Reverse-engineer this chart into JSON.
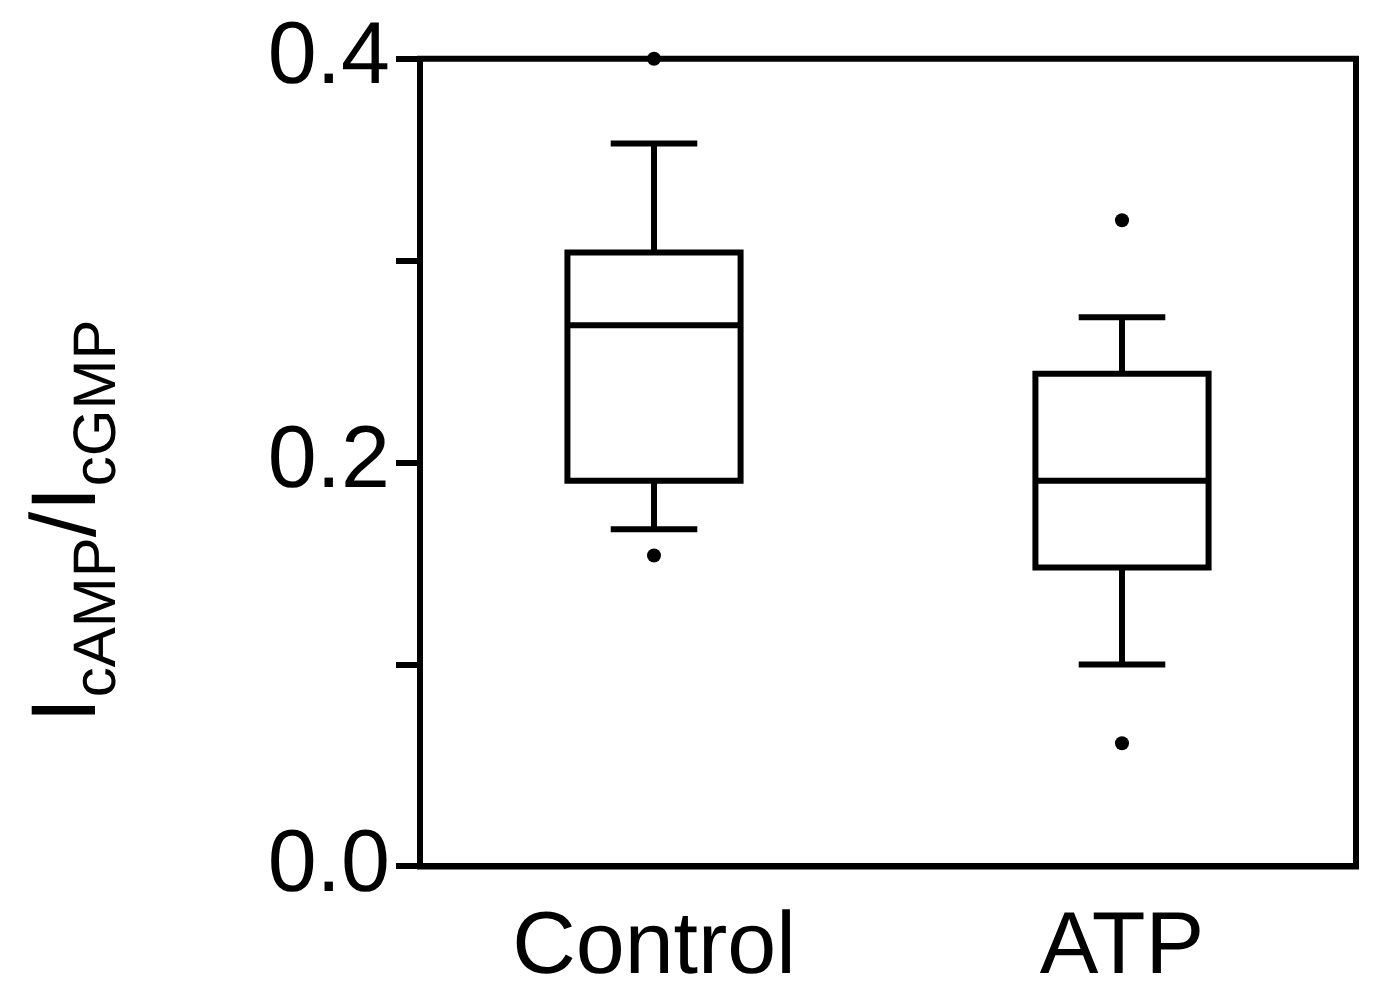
{
  "chart_data": {
    "type": "box",
    "ylabel": "I$_{cAMP}$/I$_{cGMP}$",
    "categories": [
      "Control",
      "ATP"
    ],
    "boxes": [
      {
        "low": 0.167,
        "q1": 0.191,
        "median": 0.268,
        "q3": 0.304,
        "high": 0.358,
        "outliers": [
          0.4,
          0.154
        ]
      },
      {
        "low": 0.1,
        "q1": 0.148,
        "median": 0.191,
        "q3": 0.244,
        "high": 0.272,
        "outliers": [
          0.32,
          0.061
        ]
      }
    ],
    "color": "#000000",
    "ylim": [
      0,
      0.4
    ],
    "yticks": [
      {
        "value": 0,
        "label": "0.0"
      },
      {
        "value": 0.1,
        "label": null
      },
      {
        "value": 0.2,
        "label": "0.2"
      },
      {
        "value": 0.3,
        "label": null
      },
      {
        "value": 0.4,
        "label": "0.4"
      }
    ],
    "grid": false
  }
}
